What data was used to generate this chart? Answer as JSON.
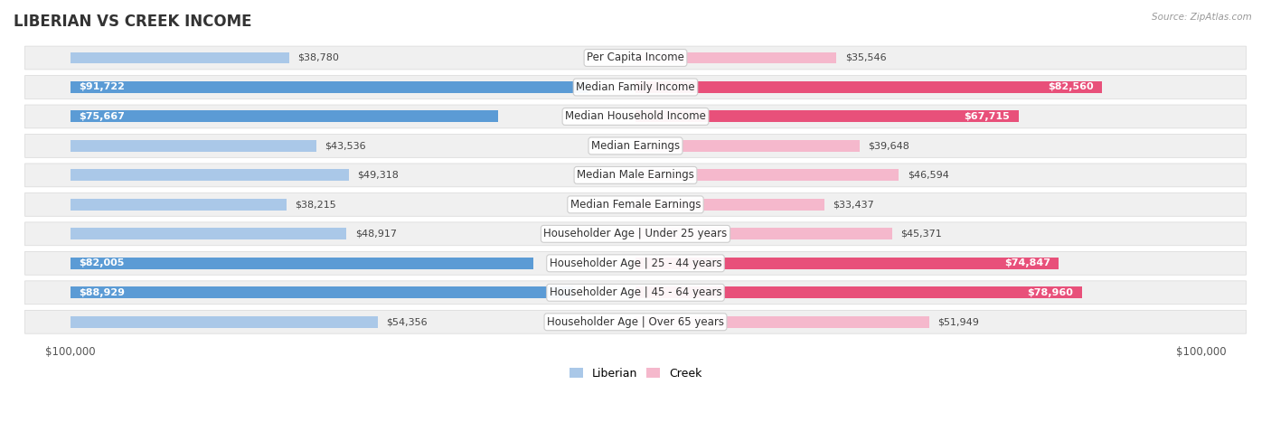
{
  "title": "LIBERIAN VS CREEK INCOME",
  "source": "Source: ZipAtlas.com",
  "categories": [
    "Per Capita Income",
    "Median Family Income",
    "Median Household Income",
    "Median Earnings",
    "Median Male Earnings",
    "Median Female Earnings",
    "Householder Age | Under 25 years",
    "Householder Age | 25 - 44 years",
    "Householder Age | 45 - 64 years",
    "Householder Age | Over 65 years"
  ],
  "liberian_values": [
    38780,
    91722,
    75667,
    43536,
    49318,
    38215,
    48917,
    82005,
    88929,
    54356
  ],
  "creek_values": [
    35546,
    82560,
    67715,
    39648,
    46594,
    33437,
    45371,
    74847,
    78960,
    51949
  ],
  "liberian_color_light": "#aac8e8",
  "liberian_color_dark": "#5b9bd5",
  "creek_color_light": "#f5b8cc",
  "creek_color_dark": "#e8507a",
  "max_value": 100000,
  "background_color": "#ffffff",
  "row_bg": "#f0f0f0",
  "row_border": "#d8d8d8",
  "title_fontsize": 12,
  "label_fontsize": 8.5,
  "value_fontsize": 8,
  "liberian_label": "Liberian",
  "creek_label": "Creek",
  "threshold_inside": 55000
}
